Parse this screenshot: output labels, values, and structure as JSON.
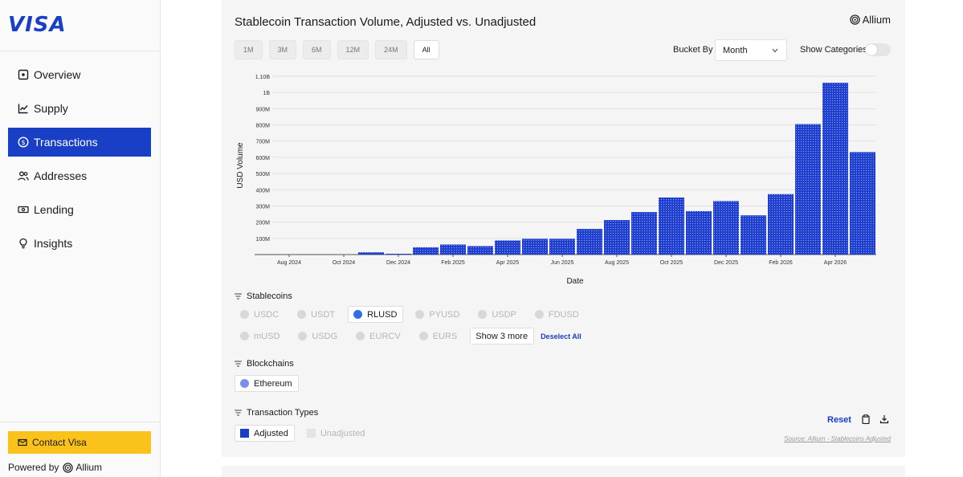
{
  "brand": {
    "logo": "VISA",
    "powered_by": "Powered by",
    "powered_brand": "Allium",
    "contact": "Contact Visa"
  },
  "nav": [
    {
      "label": "Overview",
      "icon": "overview-icon"
    },
    {
      "label": "Supply",
      "icon": "chart-line-icon"
    },
    {
      "label": "Transactions",
      "icon": "dollar-circle-icon",
      "active": true
    },
    {
      "label": "Addresses",
      "icon": "users-icon"
    },
    {
      "label": "Lending",
      "icon": "cash-icon"
    },
    {
      "label": "Insights",
      "icon": "lightbulb-icon"
    }
  ],
  "card": {
    "title": "Stablecoin Transaction Volume, Adjusted vs. Unadjusted",
    "brand": "Allium",
    "ranges": [
      "1M",
      "3M",
      "6M",
      "12M",
      "24M",
      "All"
    ],
    "active_range": "All",
    "bucket_label": "Bucket By",
    "bucket_value": "Month",
    "categories_label": "Show Categories",
    "stablecoins_title": "Stablecoins",
    "stablecoins_row1": [
      "USDC",
      "USDT",
      "RLUSD",
      "PYUSD",
      "USDP",
      "FDUSD"
    ],
    "stablecoins_row2": [
      "mUSD",
      "USDG",
      "EURCV",
      "EURS"
    ],
    "stablecoin_selected": "RLUSD",
    "show_more": "Show 3 more",
    "deselect_all": "Deselect All",
    "blockchains_title": "Blockchains",
    "blockchains": [
      "Ethereum"
    ],
    "types_title": "Transaction Types",
    "types": [
      "Adjusted",
      "Unadjusted"
    ],
    "reset": "Reset",
    "source": "Source: Allium - Stablecoins Adjusted"
  },
  "colors": {
    "accent": "#1a3fc7",
    "contact": "#fbc21b",
    "bar": "#1f3fd1"
  },
  "chart_data": {
    "type": "bar",
    "xlabel": "Date",
    "ylabel": "USD Volume",
    "ylim": [
      0,
      1100000000
    ],
    "y_ticks": [
      100000000,
      200000000,
      300000000,
      400000000,
      500000000,
      600000000,
      700000000,
      800000000,
      900000000,
      1000000000,
      1100000000
    ],
    "y_tick_labels": [
      "100M",
      "200M",
      "300M",
      "400M",
      "500M",
      "600M",
      "700M",
      "800M",
      "900M",
      "1B",
      "1.10B"
    ],
    "x_tick_labels": [
      "Aug 2024",
      "Oct 2024",
      "Dec 2024",
      "Feb 2025",
      "Apr 2025",
      "Jun 2025",
      "Aug 2025",
      "Oct 2025",
      "Dec 2025",
      "Feb 2026",
      "Apr 2026"
    ],
    "categories": [
      "Jul 2024",
      "Aug 2024",
      "Sep 2024",
      "Oct 2024",
      "Nov 2024",
      "Dec 2024",
      "Jan 2025",
      "Feb 2025",
      "Mar 2025",
      "Apr 2025",
      "May 2025",
      "Jun 2025",
      "Jul 2025",
      "Aug 2025",
      "Sep 2025",
      "Oct 2025",
      "Nov 2025",
      "Dec 2025",
      "Jan 2026",
      "Feb 2026",
      "Mar 2026",
      "Apr 2026",
      "May 2026"
    ],
    "values": [
      0,
      0,
      0,
      0,
      14000000,
      5000000,
      45000000,
      62000000,
      52000000,
      87000000,
      97000000,
      97000000,
      158000000,
      213000000,
      262000000,
      352000000,
      268000000,
      330000000,
      242000000,
      373000000,
      805000000,
      1060000000,
      632000000
    ],
    "grid": true
  }
}
